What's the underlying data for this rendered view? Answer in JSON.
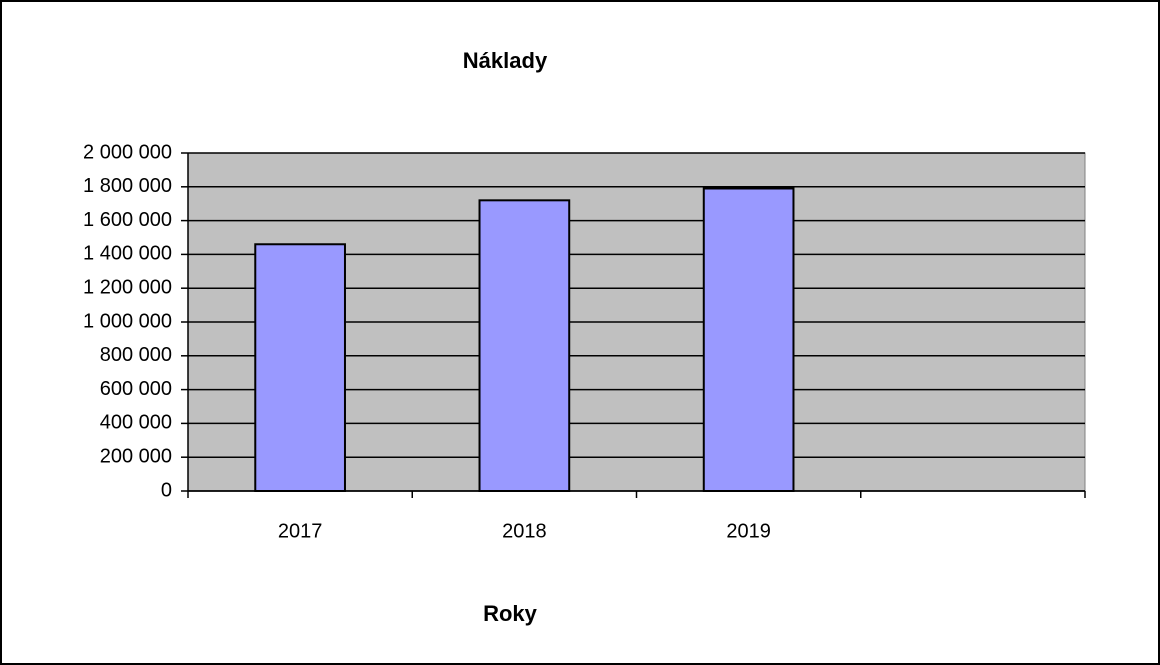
{
  "chart_data": {
    "type": "bar",
    "title": "Náklady",
    "x_label": "Roky",
    "categories": [
      "2017",
      "2018",
      "2019",
      null
    ],
    "values": [
      1460000,
      1720000,
      1790000,
      null
    ],
    "color": "#9999ff",
    "plot_background": "#c0c0c0",
    "ylim": [
      0,
      2000000
    ],
    "yticks": [
      0,
      {
        "value": 200000,
        "label": "200 000"
      },
      {
        "value": 400000,
        "label": "400 000"
      },
      {
        "value": 600000,
        "label": "600 000"
      },
      {
        "value": 800000,
        "label": "800 000"
      },
      {
        "value": 1000000,
        "label": "1 000 000"
      },
      {
        "value": 1200000,
        "label": "1 200 000"
      },
      {
        "value": 1400000,
        "label": "1 400 000"
      },
      {
        "value": 1600000,
        "label": "1 600 000"
      },
      {
        "value": 1800000,
        "label": "1 800 000"
      },
      {
        "value": 2000000,
        "label": "2 000 000"
      }
    ],
    "grid": true
  }
}
